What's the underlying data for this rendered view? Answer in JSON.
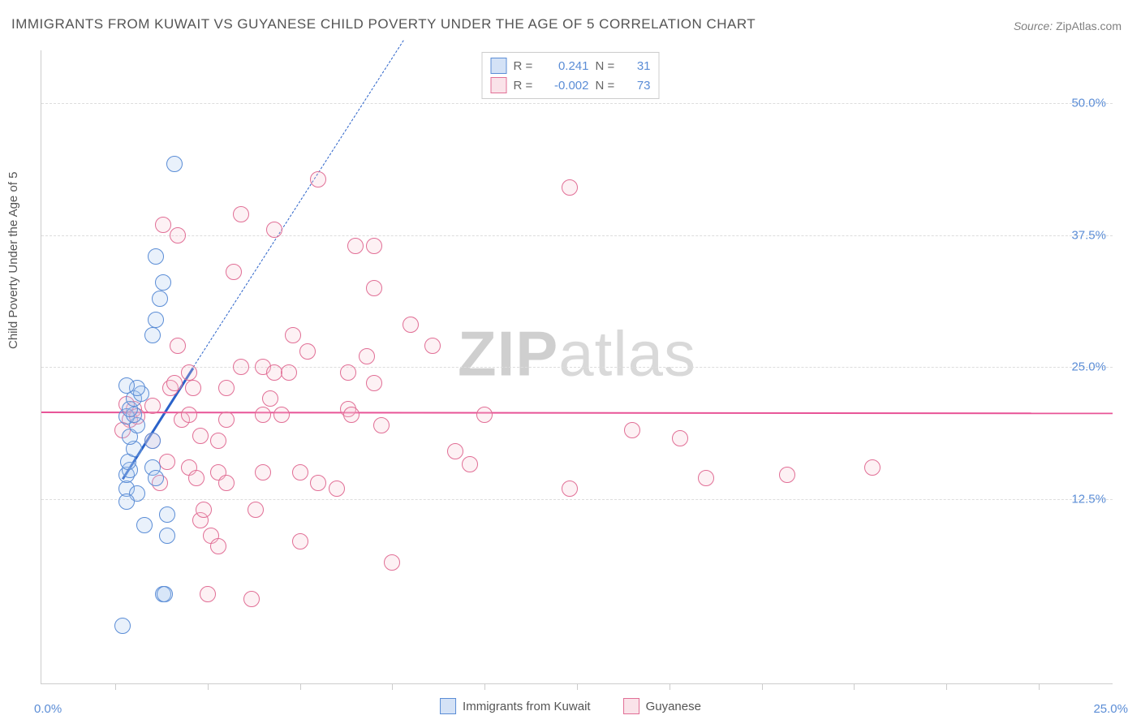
{
  "title": "IMMIGRANTS FROM KUWAIT VS GUYANESE CHILD POVERTY UNDER THE AGE OF 5 CORRELATION CHART",
  "source_label": "Source:",
  "source_value": "ZipAtlas.com",
  "watermark_bold": "ZIP",
  "watermark_rest": "atlas",
  "y_axis_title": "Child Poverty Under the Age of 5",
  "chart": {
    "type": "scatter",
    "background_color": "#ffffff",
    "grid_color": "#dddddd",
    "axis_color": "#cccccc",
    "tick_label_color": "#5b8dd6",
    "axis_title_color": "#555555",
    "title_color": "#555555",
    "title_fontsize": 17,
    "label_fontsize": 15,
    "x_domain": [
      -2,
      27
    ],
    "y_domain": [
      -5,
      55
    ],
    "y_gridlines": [
      12.5,
      25.0,
      37.5,
      50.0
    ],
    "y_tick_labels": [
      "12.5%",
      "25.0%",
      "37.5%",
      "50.0%"
    ],
    "x_ticks": [
      0,
      2.5,
      5,
      7.5,
      10,
      12.5,
      15,
      17.5,
      20,
      22.5,
      25
    ],
    "x_zero_label": "0.0%",
    "x_max_label": "25.0%",
    "point_radius": 9,
    "point_stroke_width": 1.2,
    "point_fill_opacity": 0.25
  },
  "series": [
    {
      "key": "kuwait",
      "label": "Immigrants from Kuwait",
      "fill_color": "#a9c6ee",
      "stroke_color": "#5b8dd6",
      "r": "0.241",
      "n": "31",
      "trend": {
        "x1": 0.2,
        "y1": 14.5,
        "x2": 2.1,
        "y2": 25.0,
        "dash_x2": 7.8,
        "dash_y2": 56,
        "color": "#2a62c9",
        "width": 2.5
      },
      "points": [
        [
          0.2,
          0.5
        ],
        [
          0.3,
          13.5
        ],
        [
          0.3,
          14.8
        ],
        [
          0.4,
          15.2
        ],
        [
          0.35,
          16.0
        ],
        [
          0.5,
          17.2
        ],
        [
          0.4,
          18.4
        ],
        [
          0.6,
          19.5
        ],
        [
          0.3,
          20.3
        ],
        [
          0.5,
          20.5
        ],
        [
          0.4,
          21.0
        ],
        [
          0.5,
          22.0
        ],
        [
          0.7,
          22.5
        ],
        [
          0.6,
          23.0
        ],
        [
          0.3,
          23.2
        ],
        [
          0.6,
          13.0
        ],
        [
          0.3,
          12.2
        ],
        [
          1.0,
          18.0
        ],
        [
          1.0,
          15.5
        ],
        [
          1.0,
          28.0
        ],
        [
          1.1,
          29.5
        ],
        [
          1.2,
          31.5
        ],
        [
          1.3,
          33.0
        ],
        [
          1.1,
          35.5
        ],
        [
          1.6,
          44.2
        ],
        [
          1.4,
          9.0
        ],
        [
          1.4,
          11.0
        ],
        [
          0.8,
          10.0
        ],
        [
          1.3,
          3.5
        ],
        [
          1.35,
          3.5
        ],
        [
          1.1,
          14.5
        ]
      ]
    },
    {
      "key": "guyanese",
      "label": "Guyanese",
      "fill_color": "#f6c7d4",
      "stroke_color": "#e16f96",
      "r": "-0.002",
      "n": "73",
      "trend": {
        "x1": -2,
        "y1": 20.8,
        "x2": 27,
        "y2": 20.7,
        "color": "#e85497",
        "width": 2
      },
      "points": [
        [
          0.4,
          20.0
        ],
        [
          0.5,
          21.0
        ],
        [
          0.6,
          20.3
        ],
        [
          0.2,
          19.0
        ],
        [
          0.3,
          21.5
        ],
        [
          1.0,
          21.3
        ],
        [
          1.2,
          14.0
        ],
        [
          1.4,
          16.0
        ],
        [
          1.5,
          23.0
        ],
        [
          1.6,
          23.5
        ],
        [
          1.7,
          27.0
        ],
        [
          1.8,
          20.0
        ],
        [
          2.0,
          15.5
        ],
        [
          2.0,
          24.5
        ],
        [
          2.0,
          20.5
        ],
        [
          2.1,
          23.0
        ],
        [
          2.2,
          14.5
        ],
        [
          1.7,
          37.5
        ],
        [
          1.3,
          38.5
        ],
        [
          2.3,
          10.5
        ],
        [
          2.4,
          11.5
        ],
        [
          2.5,
          3.5
        ],
        [
          2.6,
          9.0
        ],
        [
          2.8,
          8.0
        ],
        [
          2.8,
          15.0
        ],
        [
          2.8,
          18.0
        ],
        [
          3.0,
          20.0
        ],
        [
          3.0,
          23.0
        ],
        [
          3.0,
          14.0
        ],
        [
          3.2,
          34.0
        ],
        [
          3.4,
          39.5
        ],
        [
          3.4,
          25.0
        ],
        [
          3.7,
          3.0
        ],
        [
          4.0,
          20.5
        ],
        [
          4.0,
          25.0
        ],
        [
          4.0,
          15.0
        ],
        [
          4.2,
          22.0
        ],
        [
          4.3,
          24.5
        ],
        [
          4.3,
          38.0
        ],
        [
          4.5,
          20.5
        ],
        [
          4.7,
          24.5
        ],
        [
          4.8,
          28.0
        ],
        [
          5.0,
          8.5
        ],
        [
          5.2,
          26.5
        ],
        [
          5.5,
          14.0
        ],
        [
          5.5,
          42.8
        ],
        [
          6.0,
          13.5
        ],
        [
          6.3,
          21.0
        ],
        [
          6.3,
          24.5
        ],
        [
          6.4,
          20.5
        ],
        [
          6.5,
          36.5
        ],
        [
          6.8,
          26.0
        ],
        [
          7.0,
          23.5
        ],
        [
          7.0,
          32.5
        ],
        [
          7.0,
          36.5
        ],
        [
          7.2,
          19.5
        ],
        [
          7.5,
          6.5
        ],
        [
          8.0,
          29.0
        ],
        [
          8.6,
          27.0
        ],
        [
          9.2,
          17.0
        ],
        [
          9.6,
          15.8
        ],
        [
          10.0,
          20.5
        ],
        [
          12.3,
          42.0
        ],
        [
          12.3,
          13.5
        ],
        [
          14.0,
          19.0
        ],
        [
          15.3,
          18.2
        ],
        [
          16.0,
          14.5
        ],
        [
          18.2,
          14.8
        ],
        [
          20.5,
          15.5
        ],
        [
          5.0,
          15.0
        ],
        [
          3.8,
          11.5
        ],
        [
          2.3,
          18.5
        ],
        [
          1.0,
          18.0
        ]
      ]
    }
  ],
  "legend_top": {
    "r_label": "R =",
    "n_label": "N ="
  }
}
